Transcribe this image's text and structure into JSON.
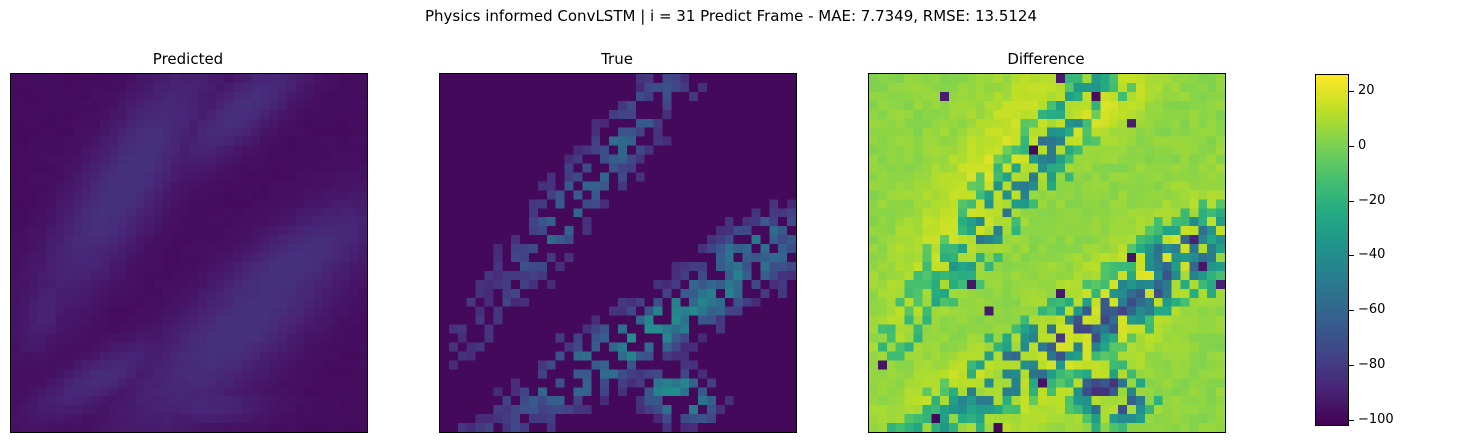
{
  "chart_data": {
    "type": "heatmap",
    "title": "Physics informed ConvLSTM | i = 31 Predict Frame - MAE: 7.7349, RMSE: 13.5124",
    "panels": [
      {
        "title": "Predicted"
      },
      {
        "title": "True"
      },
      {
        "title": "Difference"
      }
    ],
    "grid_size": [
      40,
      40
    ],
    "colormap": "viridis",
    "colorbar": {
      "range": [
        -102,
        26
      ],
      "ticks": [
        20,
        0,
        -20,
        -40,
        -60,
        -80,
        -100
      ],
      "tick_labels": [
        "20",
        "0",
        "−20",
        "−40",
        "−60",
        "−80",
        "−100"
      ]
    },
    "value_levels": {
      "predicted": {
        "background": -98,
        "plume": -84
      },
      "true": {
        "background": -99,
        "peak": -40
      },
      "difference": {
        "background": 4,
        "min": -100,
        "max": 26
      }
    }
  }
}
